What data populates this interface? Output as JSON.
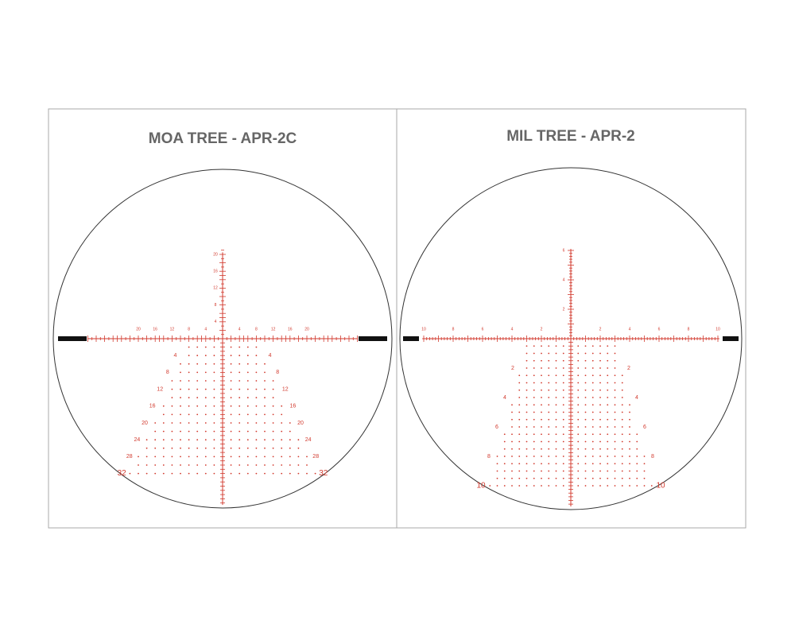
{
  "panels": [
    {
      "title": "MOA TREE - APR-2C",
      "horizontal_left": [
        20,
        16,
        12,
        8,
        4
      ],
      "horizontal_right": [
        4,
        8,
        12,
        16,
        20
      ],
      "vertical": [
        20,
        16,
        12,
        8,
        4
      ],
      "tree_left": [
        4,
        8,
        12,
        16,
        20,
        24,
        28,
        32
      ],
      "tree_right": [
        4,
        8,
        12,
        16,
        20,
        24,
        28,
        32
      ]
    },
    {
      "title": "MIL TREE - APR-2",
      "horizontal_left": [
        10,
        8,
        6,
        4,
        2
      ],
      "horizontal_right": [
        2,
        4,
        6,
        8,
        10
      ],
      "vertical": [
        6,
        4,
        2
      ],
      "tree_left": [
        2,
        4,
        6,
        8,
        10
      ],
      "tree_right": [
        2,
        4,
        6,
        8,
        10
      ]
    }
  ]
}
